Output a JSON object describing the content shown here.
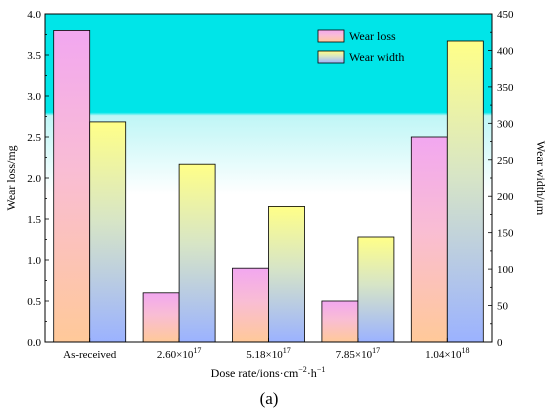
{
  "chart_data": {
    "type": "bar",
    "categories": [
      "As-received",
      "2.60×10^17",
      "5.18×10^17",
      "7.85×10^17",
      "1.04×10^18"
    ],
    "category_labels": [
      {
        "base": "As-received",
        "exp": ""
      },
      {
        "base": "2.60×10",
        "exp": "17"
      },
      {
        "base": "5.18×10",
        "exp": "17"
      },
      {
        "base": "7.85×10",
        "exp": "17"
      },
      {
        "base": "1.04×10",
        "exp": "18"
      }
    ],
    "series": [
      {
        "name": "Wear loss",
        "axis": "left",
        "values": [
          3.8,
          0.6,
          0.9,
          0.5,
          2.5
        ]
      },
      {
        "name": "Wear width",
        "axis": "right",
        "values": [
          302,
          244,
          186,
          144,
          413
        ]
      }
    ],
    "xlabel": {
      "base": "Dose rate/ions·cm",
      "sup1": "−2",
      "mid": "·h",
      "sup2": "−1"
    },
    "ylabel_left": "Wear loss/mg",
    "ylabel_right": "Wear width/μm",
    "ylim_left": [
      0,
      4.0
    ],
    "ylim_right": [
      0,
      450
    ],
    "yticks_left": [
      "0.0",
      "0.5",
      "1.0",
      "1.5",
      "2.0",
      "2.5",
      "3.0",
      "3.5",
      "4.0"
    ],
    "yticks_right": [
      "0",
      "50",
      "100",
      "150",
      "200",
      "250",
      "300",
      "350",
      "400",
      "450"
    ],
    "legend_position": "top-right",
    "grid": false,
    "panel_label": "(a)",
    "colors": {
      "background_top": "#00e5e8",
      "background_bottom": "#ffffff",
      "wear_loss_top": "#f0a6ee",
      "wear_loss_bottom": "#ffc79a",
      "wear_width_top": "#ffff8a",
      "wear_width_bottom": "#9cb3ff"
    }
  }
}
